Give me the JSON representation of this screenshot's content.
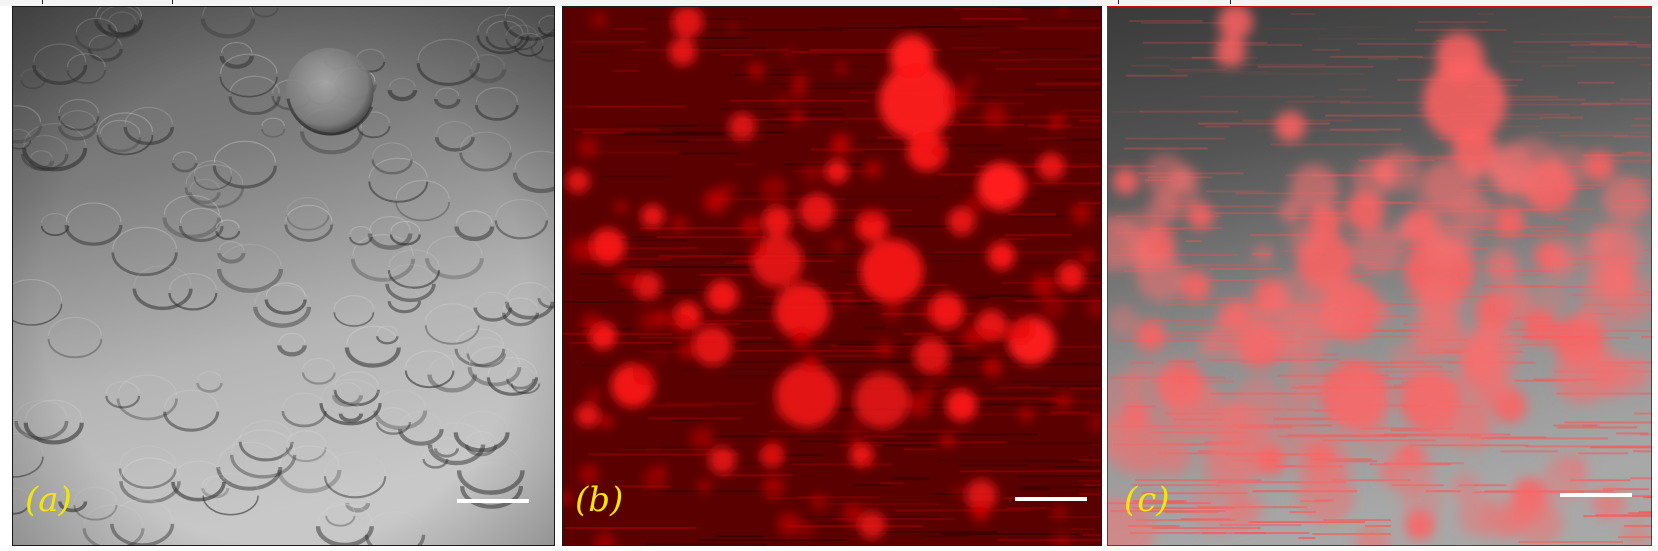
{
  "figure": {
    "panels": [
      {
        "id": "a",
        "label": "(a)",
        "kind": "brightfield-dic",
        "tint": "#9c9c9c"
      },
      {
        "id": "b",
        "label": "(b)",
        "kind": "fluorescence",
        "tint": "#ff1a1a"
      },
      {
        "id": "c",
        "label": "(c)",
        "kind": "overlay",
        "tint": "#ff6060"
      }
    ],
    "label_color": "#f5e60a",
    "scalebar_color": "#ffffff"
  }
}
